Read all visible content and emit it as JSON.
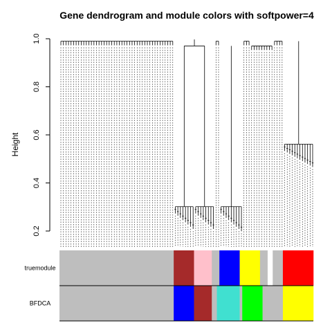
{
  "chart_data": {
    "type": "dendrogram",
    "title": "Gene dendrogram and module colors with softpower=4",
    "ylabel": "Height",
    "ylim": [
      0.2,
      1.0
    ],
    "yticks": [
      "0.2",
      "0.4",
      "0.6",
      "0.8",
      "1.0"
    ],
    "grid": false,
    "leaf_count": 100,
    "clusters": [
      {
        "leaves": [
          0,
          45
        ],
        "leaf_height": 0.99
      },
      {
        "leaves": [
          45,
          53
        ],
        "leaf_height": 0.29,
        "merge_height": 0.97
      },
      {
        "leaves": [
          53,
          61
        ],
        "leaf_height": 0.29,
        "merge_height": 0.97
      },
      {
        "leaves": [
          61,
          63
        ],
        "leaf_height": 0.99
      },
      {
        "leaves": [
          63,
          72
        ],
        "leaf_height": 0.29,
        "merge_height": 0.97
      },
      {
        "leaves": [
          72,
          75
        ],
        "leaf_height": 0.99
      },
      {
        "leaves": [
          75,
          84
        ],
        "leaf_height": 0.97
      },
      {
        "leaves": [
          84,
          88
        ],
        "leaf_height": 0.99
      },
      {
        "leaves": [
          88,
          100
        ],
        "leaf_height": 0.55,
        "merge_height": 0.99
      }
    ],
    "module_rows": [
      {
        "label": "truemodule",
        "segments": [
          {
            "leaves": [
              0,
              45
            ],
            "color": "#BEBEBE"
          },
          {
            "leaves": [
              45,
              53
            ],
            "color": "#A52A2A"
          },
          {
            "leaves": [
              53,
              60
            ],
            "color": "#FFC0CB"
          },
          {
            "leaves": [
              60,
              63
            ],
            "color": "#BEBEBE"
          },
          {
            "leaves": [
              63,
              71
            ],
            "color": "#0000FF"
          },
          {
            "leaves": [
              71,
              79
            ],
            "color": "#FFFF00"
          },
          {
            "leaves": [
              79,
              82
            ],
            "color": "#BEBEBE"
          },
          {
            "leaves": [
              82,
              84
            ],
            "color": "#FFFFFF"
          },
          {
            "leaves": [
              84,
              88
            ],
            "color": "#BEBEBE"
          },
          {
            "leaves": [
              88,
              100
            ],
            "color": "#FF0000"
          }
        ]
      },
      {
        "label": "BFDCA",
        "segments": [
          {
            "leaves": [
              0,
              45
            ],
            "color": "#BEBEBE"
          },
          {
            "leaves": [
              45,
              53
            ],
            "color": "#0000FF"
          },
          {
            "leaves": [
              53,
              60
            ],
            "color": "#A52A2A"
          },
          {
            "leaves": [
              60,
              62
            ],
            "color": "#BEBEBE"
          },
          {
            "leaves": [
              62,
              71
            ],
            "color": "#40E0D0"
          },
          {
            "leaves": [
              71,
              72
            ],
            "color": "#BEBEBE"
          },
          {
            "leaves": [
              72,
              80
            ],
            "color": "#00FF00"
          },
          {
            "leaves": [
              80,
              84
            ],
            "color": "#BEBEBE"
          },
          {
            "leaves": [
              84,
              88
            ],
            "color": "#BEBEBE"
          },
          {
            "leaves": [
              88,
              100
            ],
            "color": "#FFFF00"
          }
        ]
      }
    ]
  }
}
